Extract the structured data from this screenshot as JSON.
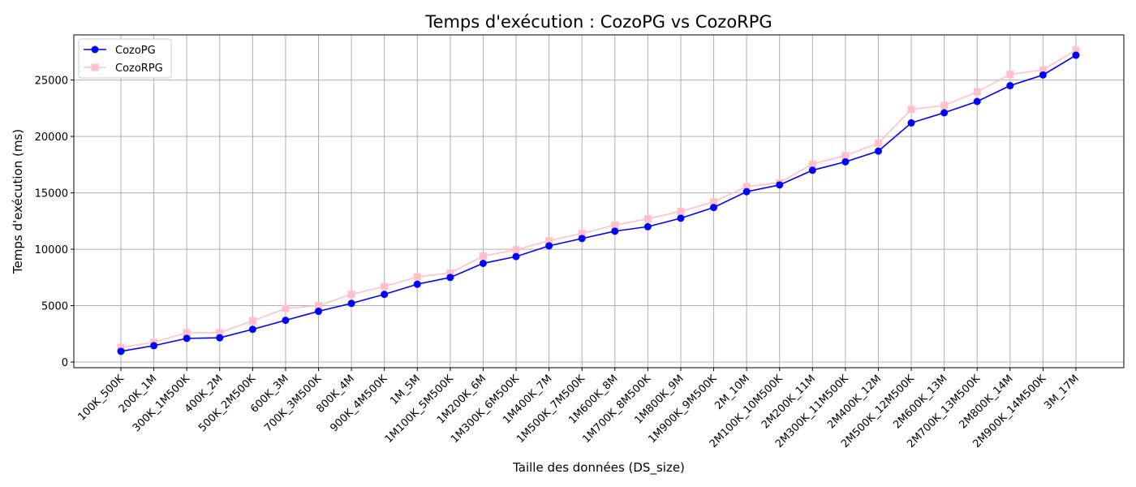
{
  "chart_data": {
    "type": "line",
    "title": "Temps d'exécution : CozoPG vs CozoRPG",
    "xlabel": "Taille des données (DS_size)",
    "ylabel": "Temps d'exécution (ms)",
    "ylim": [
      -500,
      29000
    ],
    "yticks": [
      0,
      5000,
      10000,
      15000,
      20000,
      25000
    ],
    "grid": true,
    "legend_position": "top-left",
    "categories": [
      "100K_500K",
      "200K_1M",
      "300K_1M500K",
      "400K_2M",
      "500K_2M500K",
      "600K_3M",
      "700K_3M500K",
      "800K_4M",
      "900K_4M500K",
      "1M_5M",
      "1M100K_5M500K",
      "1M200K_6M",
      "1M300K_6M500K",
      "1M400K_7M",
      "1M500K_7M500K",
      "1M600K_8M",
      "1M700K_8M500K",
      "1M800K_9M",
      "1M900K_9M500K",
      "2M_10M",
      "2M100K_10M500K",
      "2M200K_11M",
      "2M300K_11M500K",
      "2M400K_12M",
      "2M500K_12M500K",
      "2M600K_13M",
      "2M700K_13M500K",
      "2M800K_14M",
      "2M900K_14M500K",
      "3M_17M"
    ],
    "series": [
      {
        "name": "CozoPG",
        "color": "#0000ff",
        "marker": "circle",
        "values": [
          950,
          1450,
          2100,
          2150,
          2900,
          3700,
          4500,
          5200,
          6000,
          6900,
          7500,
          8750,
          9350,
          10300,
          10950,
          11600,
          12000,
          12750,
          13700,
          15100,
          15700,
          17000,
          17750,
          18700,
          21200,
          22100,
          23100,
          24500,
          25450,
          27200
        ]
      },
      {
        "name": "CozoRPG",
        "color": "#ffc0cb",
        "marker": "square",
        "values": [
          1300,
          1750,
          2600,
          2600,
          3650,
          4750,
          5000,
          6000,
          6700,
          7550,
          7900,
          9400,
          9950,
          10750,
          11400,
          12150,
          12700,
          13350,
          14200,
          15550,
          15900,
          17550,
          18300,
          19400,
          22400,
          22750,
          23950,
          25500,
          25900,
          27650
        ]
      }
    ]
  }
}
